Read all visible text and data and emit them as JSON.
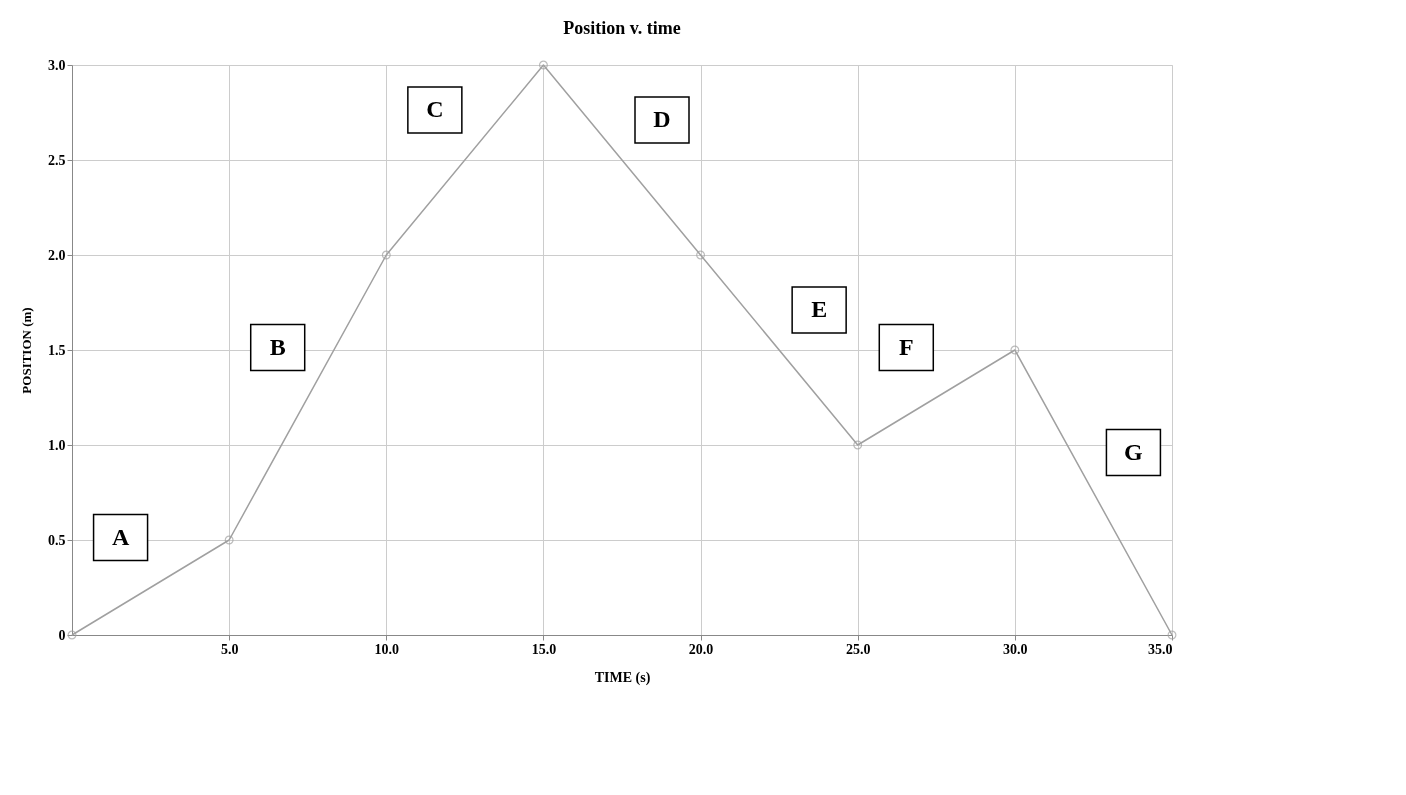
{
  "chart_data": {
    "type": "line",
    "title": "Position v. time",
    "xlabel": "TIME (s)",
    "ylabel": "POSITION (m)",
    "x": [
      0,
      5,
      10,
      15,
      20,
      25,
      30,
      35
    ],
    "series": [
      {
        "color": "#a0a0a0",
        "values": [
          0,
          0.5,
          2.0,
          3.0,
          2.0,
          1.0,
          1.5,
          0
        ]
      }
    ],
    "xlim": [
      0,
      35
    ],
    "ylim": [
      0,
      3
    ],
    "xticks": [
      {
        "value": 5,
        "label": "5.0"
      },
      {
        "value": 10,
        "label": "10.0"
      },
      {
        "value": 15,
        "label": "15.0"
      },
      {
        "value": 20,
        "label": "20.0"
      },
      {
        "value": 25,
        "label": "25.0"
      },
      {
        "value": 30,
        "label": "30.0"
      },
      {
        "value": 35,
        "label": "35.0"
      }
    ],
    "yticks": [
      0,
      0.5,
      {
        "value": 1,
        "label": "1.0"
      },
      1.5,
      {
        "value": 2,
        "label": "2.0"
      },
      2.5,
      {
        "value": 3,
        "label": "3.0"
      }
    ],
    "grid": true,
    "marker": "circle",
    "line_style": "solid",
    "annotations": [
      "A",
      "B",
      "C",
      "D",
      "E",
      "F",
      "G"
    ]
  }
}
